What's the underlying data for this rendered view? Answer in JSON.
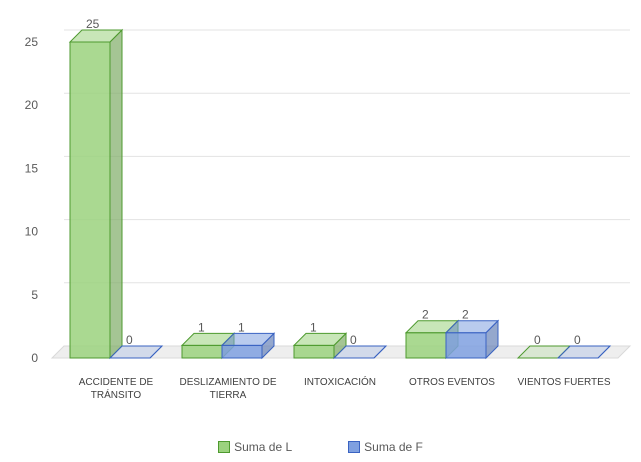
{
  "chart_data": {
    "type": "bar",
    "style": "3d-clustered-column",
    "categories": [
      [
        "ACCIDENTE DE",
        "TRÁNSITO"
      ],
      [
        "DESLIZAMIENTO DE",
        "TIERRA"
      ],
      [
        "INTOXICACIÓN"
      ],
      [
        "OTROS EVENTOS"
      ],
      [
        "VIENTOS FUERTES"
      ]
    ],
    "series": [
      {
        "name": "Suma de L",
        "values": [
          25,
          1,
          1,
          2,
          0
        ],
        "color": "#9bd27e",
        "stroke": "#4e9a2f"
      },
      {
        "name": "Suma de F",
        "values": [
          0,
          1,
          0,
          2,
          0
        ],
        "color": "#7fa0e0",
        "stroke": "#3a63c2"
      }
    ],
    "title": "",
    "xlabel": "",
    "ylabel": "",
    "ylim": [
      0,
      25
    ],
    "yticks": [
      0,
      5,
      10,
      15,
      20,
      25
    ],
    "grid": true,
    "legend_position": "bottom"
  }
}
